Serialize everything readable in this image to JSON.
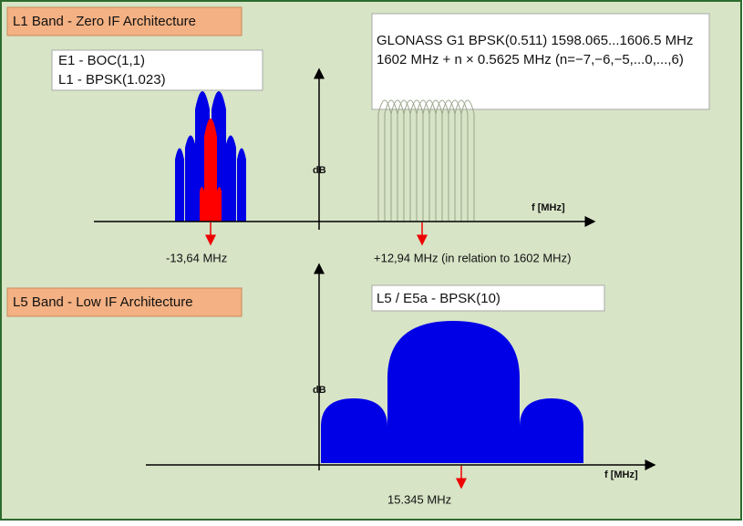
{
  "l1_band": {
    "title": "L1 Band - Zero IF Architecture",
    "legend_lines": [
      "E1 - BOC(1,1)",
      "L1 - BPSK(1.023)"
    ],
    "glonass_lines": [
      "GLONASS G1 BPSK(0.511) 1598.065...1606.5 MHz",
      "1602 MHz + n × 0.5625 MHz (n=−7,−6,−5,...0,...,6)"
    ],
    "y_axis_label": "dB",
    "x_axis_label": "f [MHz]",
    "marker_left": "-13,64 MHz",
    "marker_right": "+12,94 MHz (in relation to 1602 MHz)"
  },
  "l5_band": {
    "title": "L5 Band - Low IF Architecture",
    "legend": "L5 / E5a - BPSK(10)",
    "y_axis_label": "dB",
    "x_axis_label": "f [MHz]",
    "marker": "15.345 MHz"
  }
}
